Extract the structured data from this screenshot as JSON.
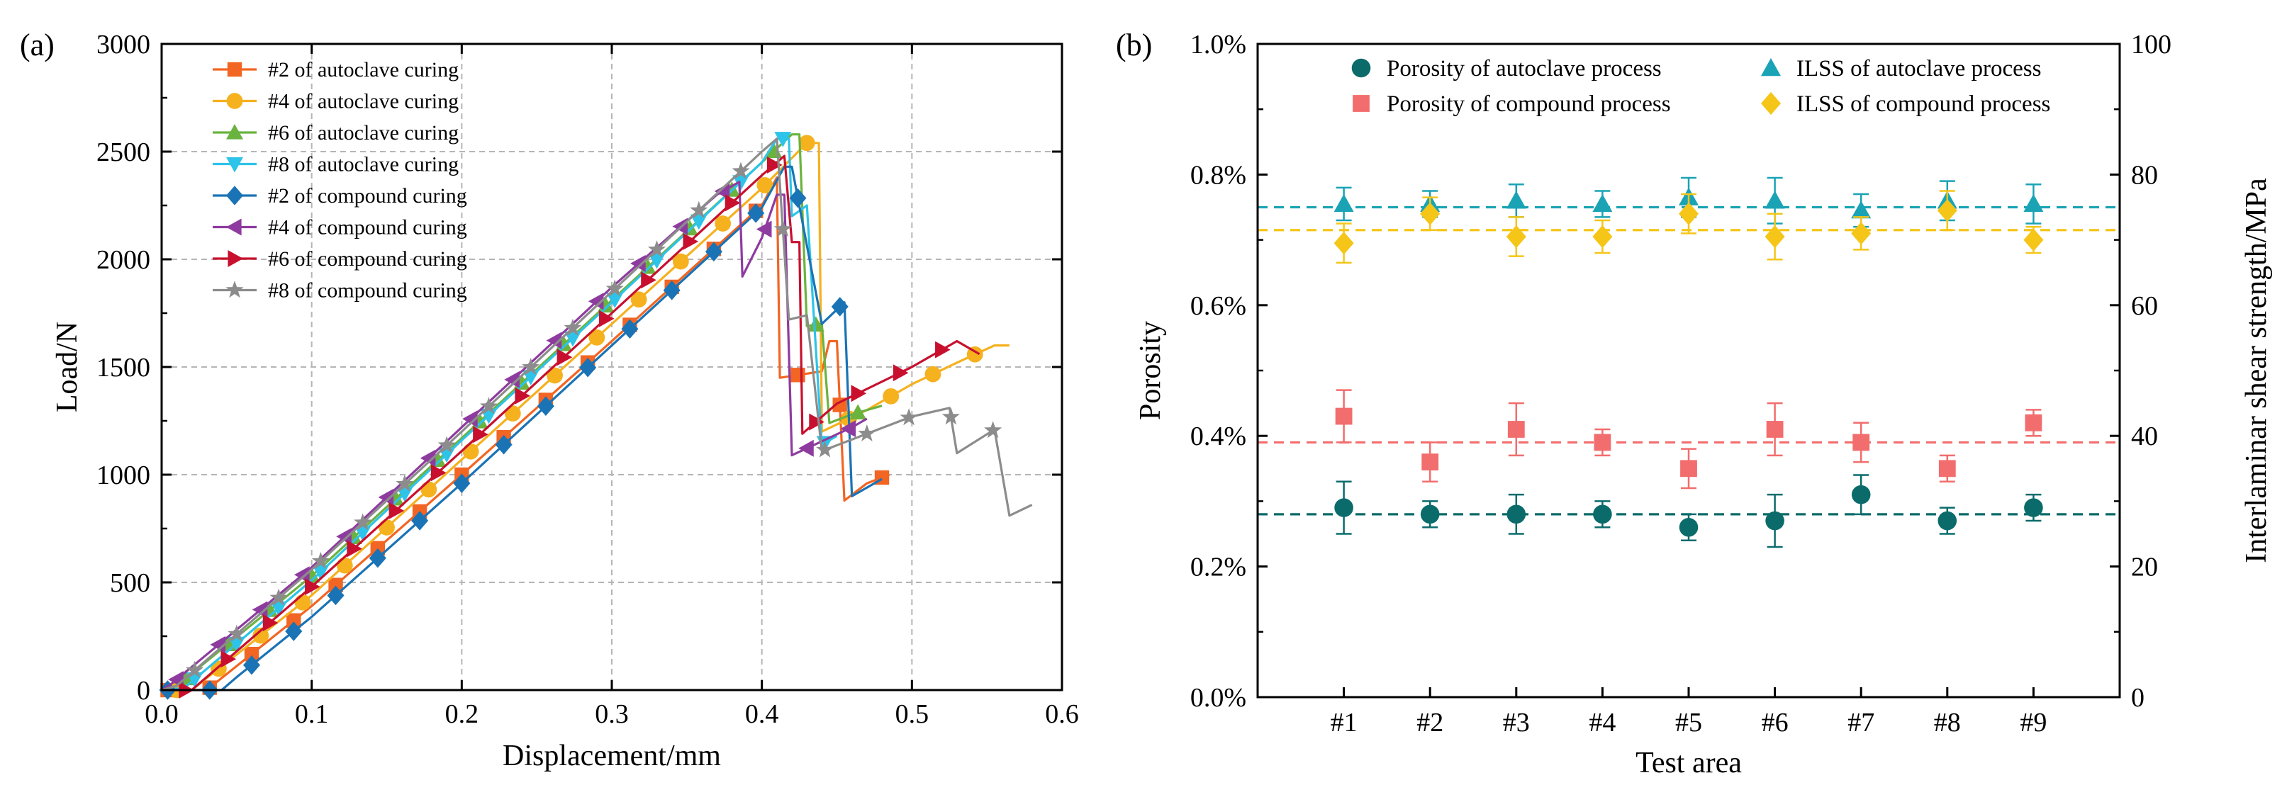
{
  "chart_data": [
    {
      "panel": "(a)",
      "type": "line",
      "xlabel": "Displacement/mm",
      "ylabel": "Load/N",
      "xlim": [
        0,
        0.6
      ],
      "ylim": [
        0,
        3000
      ],
      "xticks": [
        "0.0",
        "0.1",
        "0.2",
        "0.3",
        "0.4",
        "0.5",
        "0.6"
      ],
      "yticks": [
        "0",
        "500",
        "1000",
        "1500",
        "2000",
        "2500",
        "3000"
      ],
      "grid": true,
      "legend_position": "top-left",
      "series": [
        {
          "name": "#2 of autoclave curing",
          "color": "#f26522",
          "marker": "square",
          "points": [
            [
              0.0,
              0
            ],
            [
              0.03,
              0
            ],
            [
              0.1,
              390
            ],
            [
              0.2,
              1000
            ],
            [
              0.3,
              1620
            ],
            [
              0.4,
              2250
            ],
            [
              0.41,
              2380
            ],
            [
              0.412,
              1450
            ],
            [
              0.44,
              1480
            ],
            [
              0.445,
              1620
            ],
            [
              0.45,
              1620
            ],
            [
              0.455,
              880
            ],
            [
              0.47,
              960
            ],
            [
              0.485,
              1000
            ]
          ]
        },
        {
          "name": "#4 of autoclave curing",
          "color": "#f5b11e",
          "marker": "circle",
          "points": [
            [
              0.0,
              0
            ],
            [
              0.02,
              0
            ],
            [
              0.1,
              440
            ],
            [
              0.2,
              1070
            ],
            [
              0.3,
              1700
            ],
            [
              0.4,
              2330
            ],
            [
              0.43,
              2540
            ],
            [
              0.438,
              2540
            ],
            [
              0.44,
              1200
            ],
            [
              0.47,
              1300
            ],
            [
              0.5,
              1420
            ],
            [
              0.53,
              1520
            ],
            [
              0.555,
              1600
            ],
            [
              0.565,
              1600
            ]
          ]
        },
        {
          "name": "#6 of autoclave curing",
          "color": "#6bb33f",
          "marker": "triangle-up",
          "points": [
            [
              0.0,
              0
            ],
            [
              0.01,
              20
            ],
            [
              0.1,
              530
            ],
            [
              0.2,
              1170
            ],
            [
              0.3,
              1810
            ],
            [
              0.4,
              2450
            ],
            [
              0.42,
              2580
            ],
            [
              0.425,
              2580
            ],
            [
              0.43,
              1690
            ],
            [
              0.44,
              1700
            ],
            [
              0.445,
              1240
            ],
            [
              0.46,
              1280
            ],
            [
              0.48,
              1320
            ]
          ]
        },
        {
          "name": "#8 of autoclave curing",
          "color": "#2ec3e8",
          "marker": "triangle-down",
          "points": [
            [
              0.0,
              0
            ],
            [
              0.015,
              10
            ],
            [
              0.1,
              510
            ],
            [
              0.2,
              1160
            ],
            [
              0.3,
              1800
            ],
            [
              0.4,
              2450
            ],
            [
              0.41,
              2560
            ],
            [
              0.418,
              2560
            ],
            [
              0.42,
              2200
            ],
            [
              0.43,
              2250
            ],
            [
              0.44,
              1140
            ],
            [
              0.45,
              1180
            ]
          ]
        },
        {
          "name": "#2 of compound curing",
          "color": "#1a73b5",
          "marker": "diamond",
          "points": [
            [
              0.0,
              0
            ],
            [
              0.04,
              0
            ],
            [
              0.05,
              60
            ],
            [
              0.1,
              340
            ],
            [
              0.2,
              960
            ],
            [
              0.3,
              1600
            ],
            [
              0.4,
              2240
            ],
            [
              0.415,
              2430
            ],
            [
              0.42,
              2430
            ],
            [
              0.44,
              1700
            ],
            [
              0.455,
              1800
            ],
            [
              0.46,
              900
            ],
            [
              0.47,
              940
            ],
            [
              0.48,
              980
            ]
          ]
        },
        {
          "name": "#4 of compound curing",
          "color": "#8e3b9f",
          "marker": "triangle-left",
          "points": [
            [
              0.0,
              0
            ],
            [
              0.005,
              20
            ],
            [
              0.1,
              570
            ],
            [
              0.2,
              1220
            ],
            [
              0.3,
              1870
            ],
            [
              0.37,
              2300
            ],
            [
              0.385,
              2360
            ],
            [
              0.387,
              1920
            ],
            [
              0.4,
              2100
            ],
            [
              0.41,
              2300
            ],
            [
              0.415,
              2300
            ],
            [
              0.42,
              1090
            ],
            [
              0.46,
              1220
            ],
            [
              0.47,
              1260
            ]
          ]
        },
        {
          "name": "#6 of compound curing",
          "color": "#c8102e",
          "marker": "triangle-right",
          "points": [
            [
              0.0,
              0
            ],
            [
              0.02,
              0
            ],
            [
              0.1,
              480
            ],
            [
              0.2,
              1110
            ],
            [
              0.3,
              1750
            ],
            [
              0.4,
              2390
            ],
            [
              0.415,
              2480
            ],
            [
              0.42,
              2080
            ],
            [
              0.425,
              2080
            ],
            [
              0.427,
              1190
            ],
            [
              0.45,
              1330
            ],
            [
              0.5,
              1500
            ],
            [
              0.53,
              1620
            ],
            [
              0.545,
              1560
            ]
          ]
        },
        {
          "name": "#8 of compound curing",
          "color": "#8c8c8c",
          "marker": "star",
          "points": [
            [
              0.0,
              0
            ],
            [
              0.01,
              20
            ],
            [
              0.1,
              560
            ],
            [
              0.2,
              1200
            ],
            [
              0.3,
              1850
            ],
            [
              0.4,
              2500
            ],
            [
              0.41,
              2560
            ],
            [
              0.418,
              1720
            ],
            [
              0.43,
              1740
            ],
            [
              0.44,
              1110
            ],
            [
              0.5,
              1270
            ],
            [
              0.525,
              1310
            ],
            [
              0.53,
              1100
            ],
            [
              0.555,
              1210
            ],
            [
              0.565,
              810
            ],
            [
              0.58,
              860
            ]
          ]
        }
      ]
    },
    {
      "panel": "(b)",
      "type": "scatter",
      "xlabel": "Test area",
      "ylabel_left": "Porosity",
      "ylabel_right": "Interlaminar shear strength/MPa",
      "categories": [
        "#1",
        "#2",
        "#3",
        "#4",
        "#5",
        "#6",
        "#7",
        "#8",
        "#9"
      ],
      "ylim_left": [
        0,
        1.0
      ],
      "ylim_right": [
        0,
        100
      ],
      "yticks_left": [
        "0.0%",
        "0.2%",
        "0.4%",
        "0.6%",
        "0.8%",
        "1.0%"
      ],
      "yticks_right": [
        "0",
        "20",
        "40",
        "60",
        "80",
        "100"
      ],
      "legend_position": "top",
      "series": [
        {
          "name": "Porosity of autoclave process",
          "axis": "left",
          "color": "#0b6b6b",
          "marker": "circle",
          "values": [
            0.29,
            0.28,
            0.28,
            0.28,
            0.26,
            0.27,
            0.31,
            0.27,
            0.29
          ],
          "errors": [
            0.04,
            0.02,
            0.03,
            0.02,
            0.02,
            0.04,
            0.03,
            0.02,
            0.02
          ],
          "mean": 0.28
        },
        {
          "name": "Porosity of compound process",
          "axis": "left",
          "color": "#f26d6d",
          "marker": "square",
          "values": [
            0.43,
            0.36,
            0.41,
            0.39,
            0.35,
            0.41,
            0.39,
            0.35,
            0.42
          ],
          "errors": [
            0.04,
            0.03,
            0.04,
            0.02,
            0.03,
            0.04,
            0.03,
            0.02,
            0.02
          ],
          "mean": 0.39
        },
        {
          "name": "ILSS of autoclave process",
          "axis": "right",
          "color": "#1aa3b5",
          "marker": "triangle-up",
          "values": [
            75.5,
            75.5,
            76,
            75.5,
            76.5,
            76,
            74.5,
            76,
            75.5
          ],
          "errors": [
            2.5,
            2.0,
            2.5,
            2.0,
            3.0,
            3.5,
            2.5,
            3.0,
            3.0
          ],
          "mean": 75
        },
        {
          "name": "ILSS of compound process",
          "axis": "right",
          "color": "#f5c518",
          "marker": "diamond",
          "values": [
            69.5,
            74,
            70.5,
            70.5,
            74,
            70.5,
            71,
            74.5,
            70
          ],
          "errors": [
            3.0,
            2.5,
            3.0,
            2.5,
            3.0,
            3.5,
            2.5,
            3.0,
            2.0
          ],
          "mean": 71.5
        }
      ]
    }
  ]
}
